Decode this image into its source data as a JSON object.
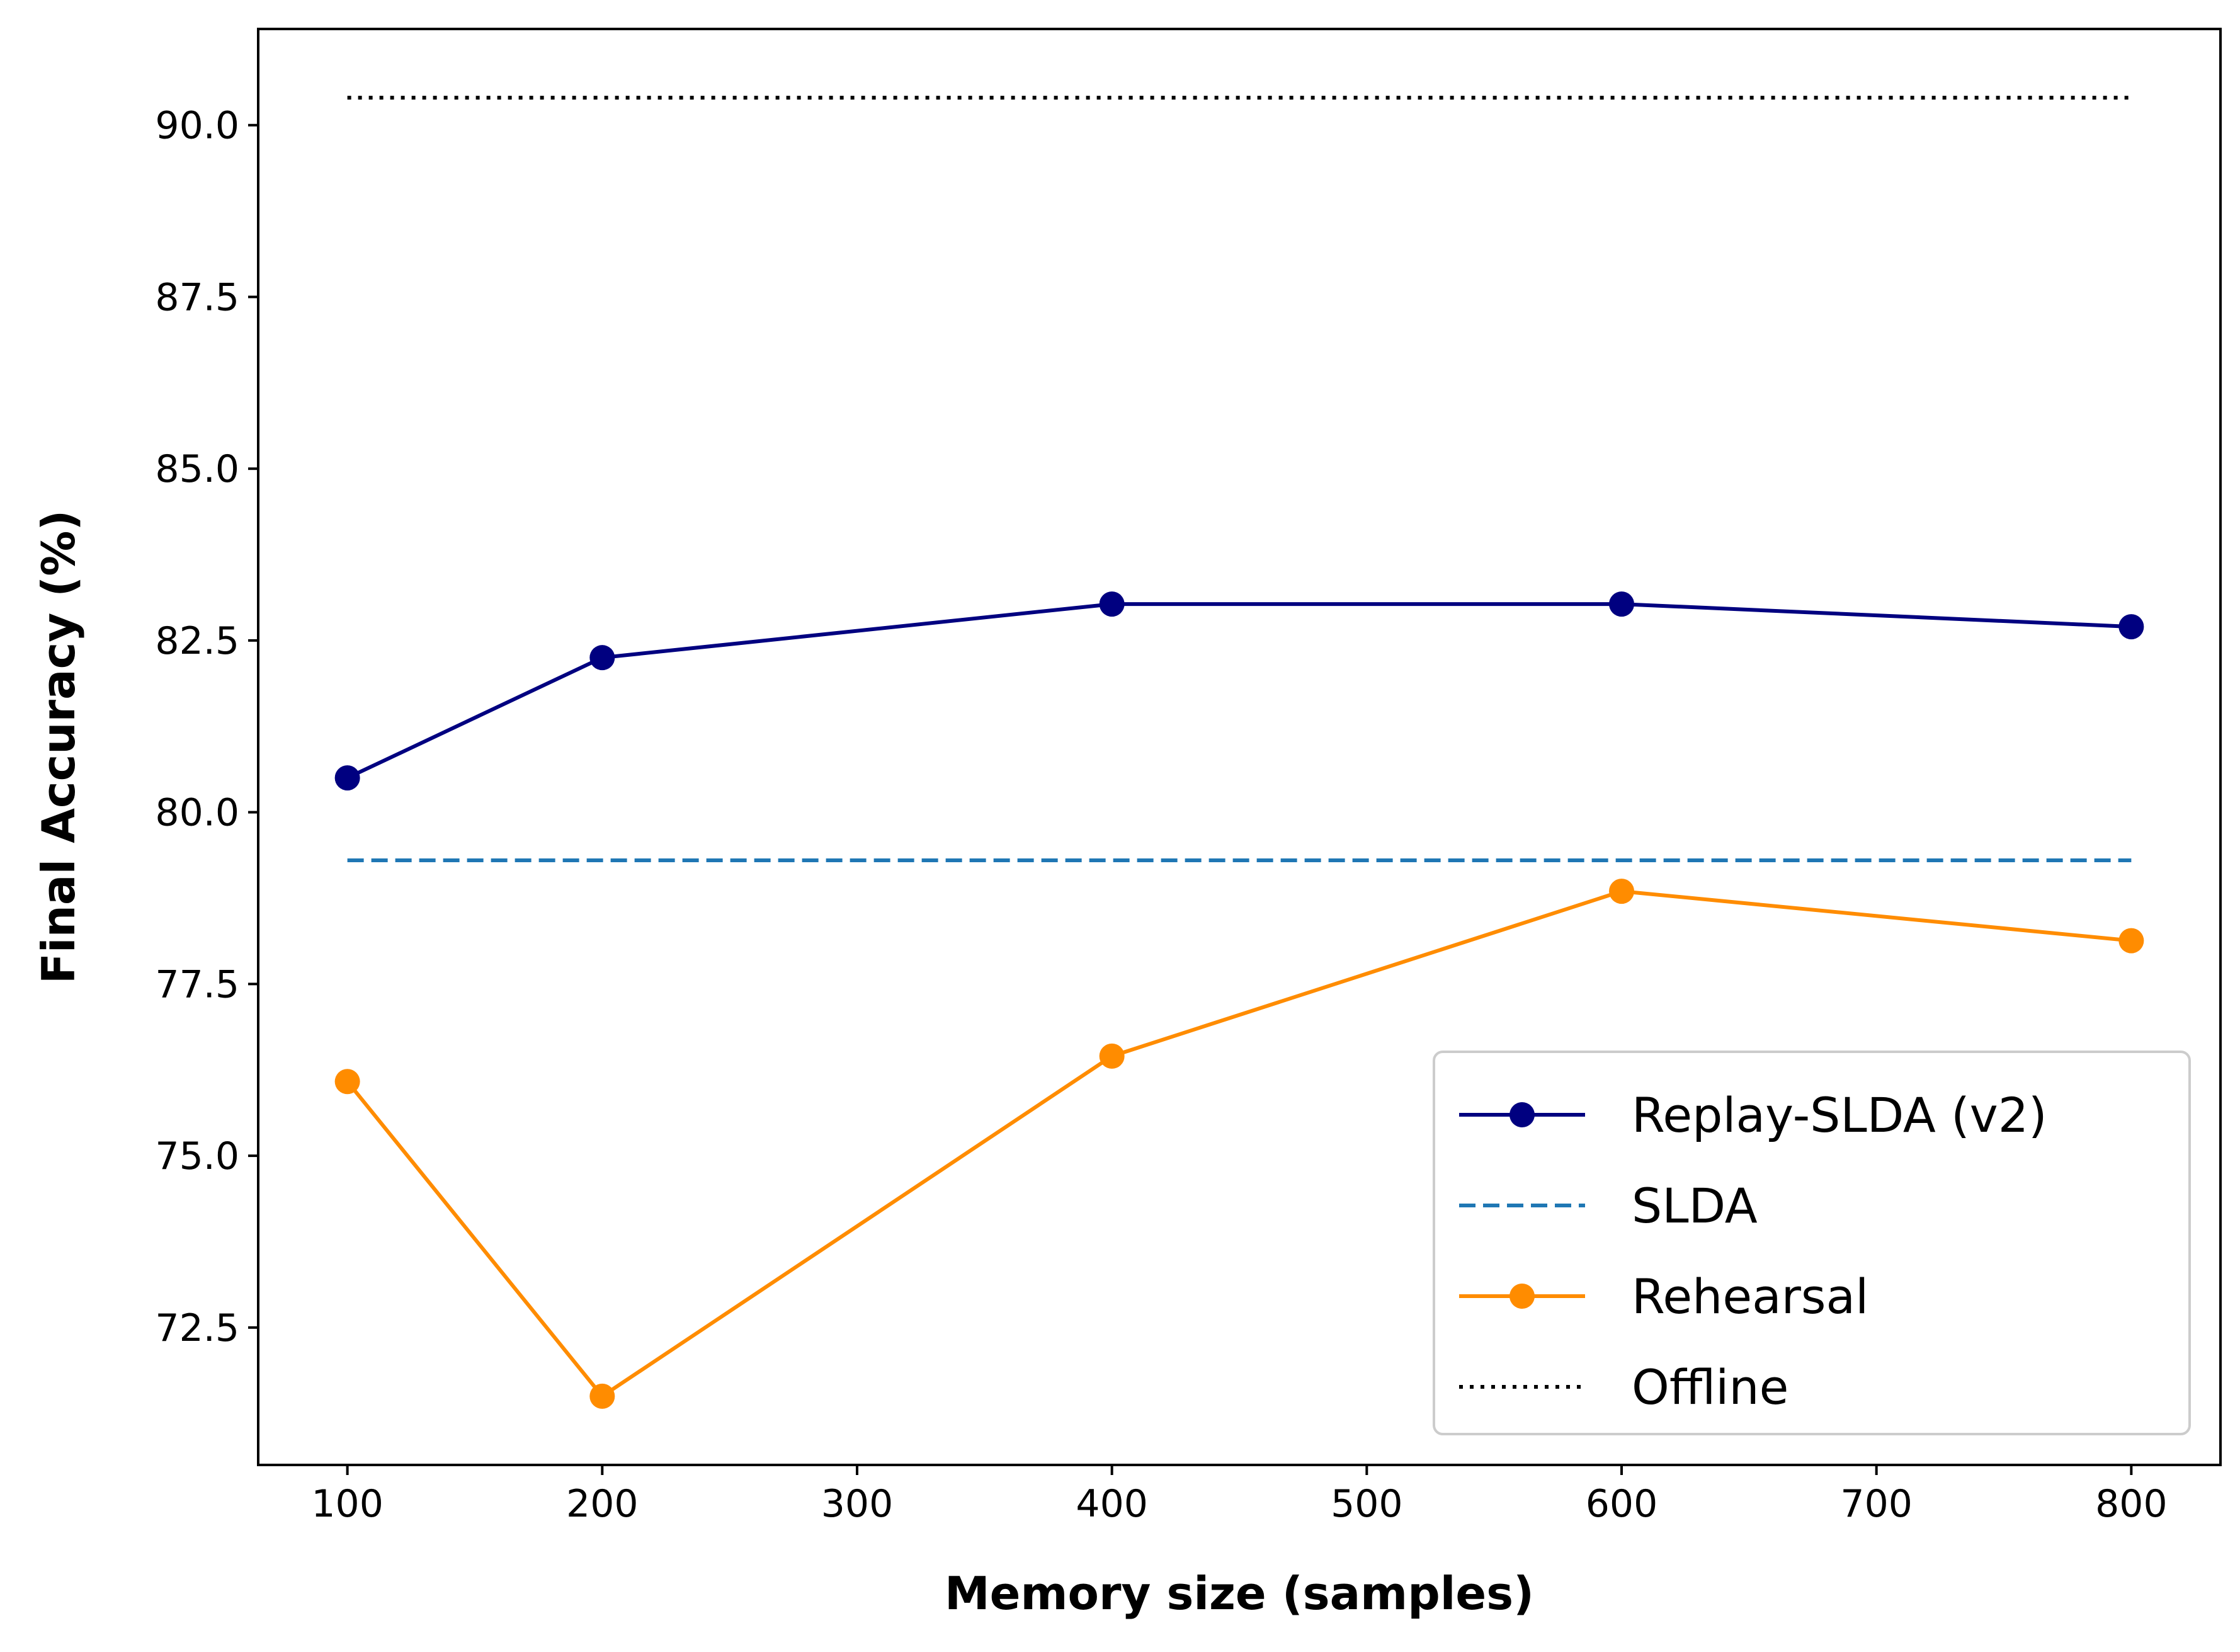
{
  "chart_data": {
    "type": "line",
    "xlabel": "Memory size (samples)",
    "ylabel": "Final Accuracy (%)",
    "xlim": [
      65,
      835
    ],
    "ylim": [
      70.5,
      91.4
    ],
    "xticks": [
      100,
      200,
      300,
      400,
      500,
      600,
      700,
      800
    ],
    "xtick_labels": [
      "100",
      "200",
      "300",
      "400",
      "500",
      "600",
      "700",
      "800"
    ],
    "yticks": [
      72.5,
      75.0,
      77.5,
      80.0,
      82.5,
      85.0,
      87.5,
      90.0
    ],
    "ytick_labels": [
      "72.5",
      "75.0",
      "77.5",
      "80.0",
      "82.5",
      "85.0",
      "87.5",
      "90.0"
    ],
    "grid": false,
    "legend_position": "lower-right",
    "series": [
      {
        "name": "Replay-SLDA (v2)",
        "color": "#000080",
        "style": "solid",
        "marker": "circle",
        "x": [
          100,
          200,
          400,
          600,
          800
        ],
        "y": [
          80.5,
          82.25,
          83.03,
          83.03,
          82.7
        ]
      },
      {
        "name": "SLDA",
        "color": "#1f77b4",
        "style": "dashed",
        "marker": "none",
        "x": [
          100,
          800
        ],
        "y": [
          79.3,
          79.3
        ]
      },
      {
        "name": "Rehearsal",
        "color": "#ff8c00",
        "style": "solid",
        "marker": "circle",
        "x": [
          100,
          200,
          400,
          600,
          800
        ],
        "y": [
          76.08,
          71.5,
          76.45,
          78.85,
          78.13
        ]
      },
      {
        "name": "Offline",
        "color": "#000000",
        "style": "dotted",
        "marker": "none",
        "x": [
          100,
          800
        ],
        "y": [
          90.4,
          90.4
        ]
      }
    ]
  }
}
